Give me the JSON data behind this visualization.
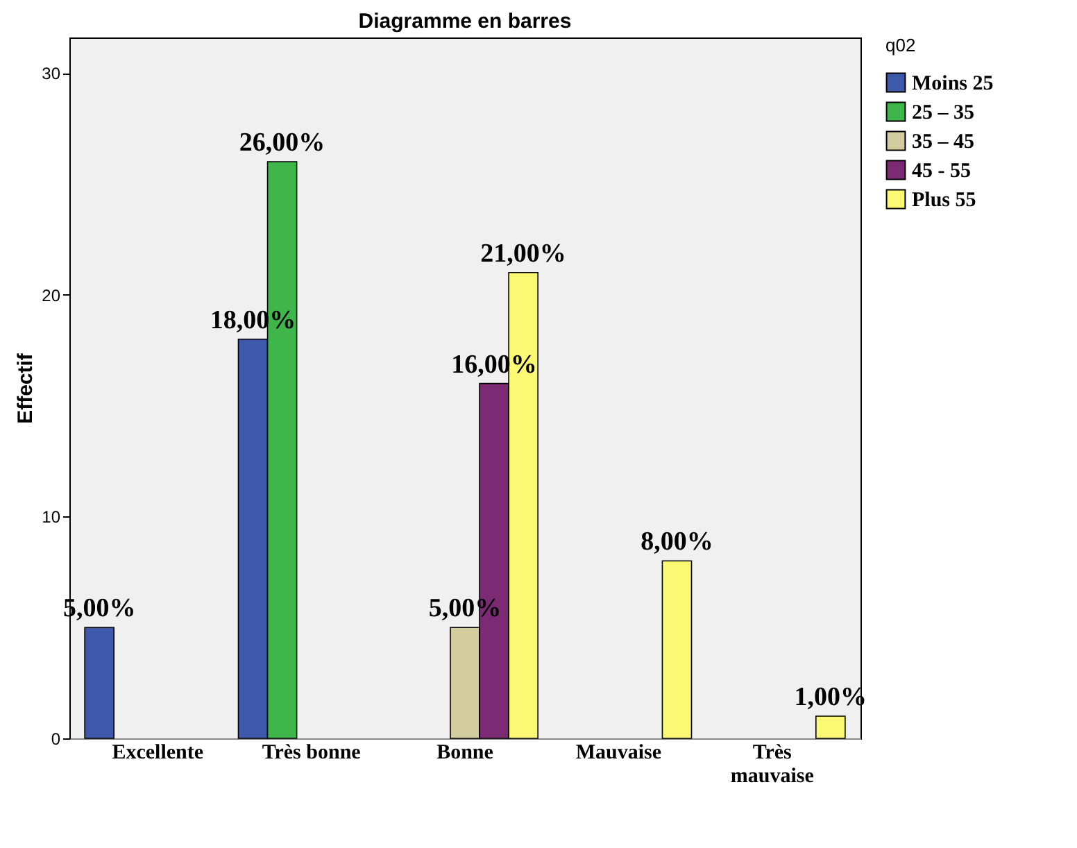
{
  "chart_data": {
    "type": "bar",
    "title": "Diagramme en barres",
    "ylabel": "Effectif",
    "legend_title": "q02",
    "legend": "top right",
    "grid": false,
    "categories": [
      "Excellente",
      "Très bonne",
      "Bonne",
      "Mauvaise",
      "Très mauvaise"
    ],
    "ylim": [
      0,
      31.6
    ],
    "yticks": [
      0,
      10,
      20,
      30
    ],
    "series": [
      {
        "name": "Moins 25",
        "color": "#3e58ac",
        "values": [
          5,
          18,
          null,
          null,
          null
        ],
        "value_labels": [
          "5,00%",
          "18,00%",
          null,
          null,
          null
        ]
      },
      {
        "name": "25 – 35",
        "color": "#3eb649",
        "values": [
          null,
          26,
          null,
          null,
          null
        ],
        "value_labels": [
          null,
          "26,00%",
          null,
          null,
          null
        ]
      },
      {
        "name": "35 – 45",
        "color": "#d2cc9e",
        "values": [
          null,
          null,
          5,
          null,
          null
        ],
        "value_labels": [
          null,
          null,
          "5,00%",
          null,
          null
        ]
      },
      {
        "name": "45 - 55",
        "color": "#7b2a73",
        "values": [
          null,
          null,
          16,
          null,
          null
        ],
        "value_labels": [
          null,
          null,
          "16,00%",
          null,
          null
        ]
      },
      {
        "name": "Plus 55",
        "color": "#fbf873",
        "values": [
          null,
          null,
          21,
          8,
          1
        ],
        "value_labels": [
          null,
          null,
          "21,00%",
          "8,00%",
          "1,00%"
        ]
      }
    ]
  }
}
